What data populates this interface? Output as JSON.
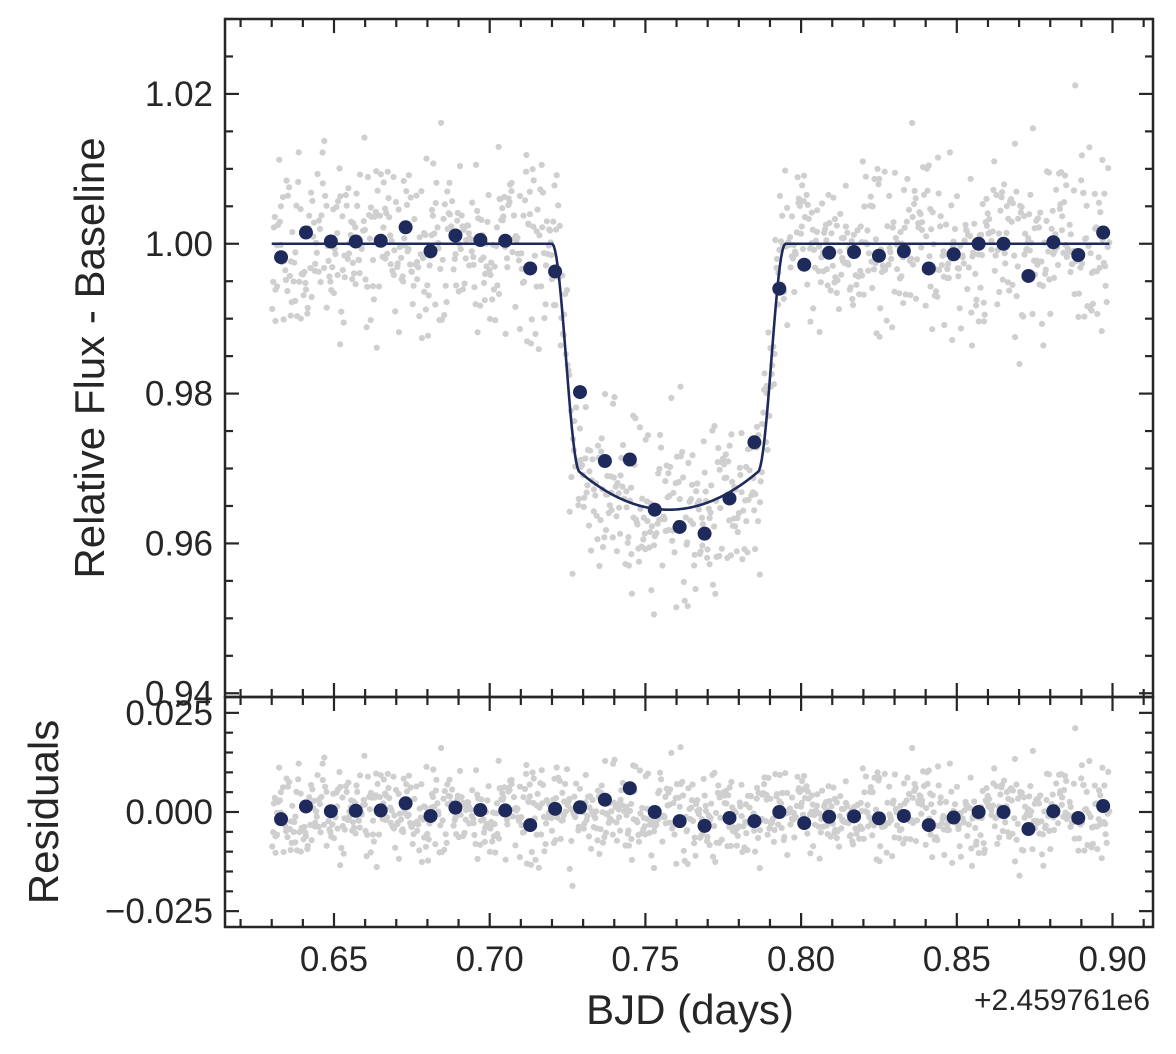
{
  "chart_data": {
    "type": "scatter",
    "x_offset_label": "+2.459761e6",
    "xlabel": "BJD (days)",
    "xlim": [
      0.615,
      0.913
    ],
    "xticks": [
      0.65,
      0.7,
      0.75,
      0.8,
      0.85,
      0.9
    ],
    "xtick_labels": [
      "0.65",
      "0.70",
      "0.75",
      "0.80",
      "0.85",
      "0.90"
    ],
    "colors": {
      "raw": "#cfcfcf",
      "binned": "#1f2a5c",
      "model": "#1f2a5c",
      "axes": "#262626"
    },
    "top_panel": {
      "ylabel": "Relative Flux - Baseline",
      "ylim": [
        0.9395,
        1.03
      ],
      "yticks": [
        0.94,
        0.96,
        0.98,
        1.0,
        1.02
      ],
      "ytick_labels": [
        "0.94",
        "0.96",
        "0.98",
        "1.00",
        "1.02"
      ],
      "model": {
        "baseline": 1.0,
        "depth_min": 0.9645,
        "t_mid": 0.7575,
        "t1": 0.72,
        "t2": 0.729,
        "t3": 0.786,
        "t4": 0.795,
        "x_start": 0.63,
        "x_end": 0.899
      },
      "binned": {
        "x": [
          0.633,
          0.641,
          0.649,
          0.657,
          0.665,
          0.673,
          0.681,
          0.689,
          0.697,
          0.705,
          0.713,
          0.721,
          0.729,
          0.737,
          0.745,
          0.753,
          0.761,
          0.769,
          0.777,
          0.785,
          0.793,
          0.801,
          0.809,
          0.817,
          0.825,
          0.833,
          0.841,
          0.849,
          0.857,
          0.865,
          0.873,
          0.881,
          0.889,
          0.897
        ],
        "y": [
          0.9982,
          1.0015,
          1.0003,
          1.0003,
          1.0004,
          1.0022,
          0.999,
          1.0011,
          1.0005,
          1.0004,
          0.9967,
          0.9963,
          0.9802,
          0.971,
          0.9712,
          0.9645,
          0.9622,
          0.9613,
          0.966,
          0.9735,
          0.994,
          0.9972,
          0.9988,
          0.9989,
          0.9984,
          0.999,
          0.9967,
          0.9986,
          1.0,
          1.0,
          0.9957,
          1.0002,
          0.9985,
          1.0015
        ]
      },
      "raw_scatter": {
        "n": 1100,
        "sigma": 0.0058,
        "seed": 7
      }
    },
    "bottom_panel": {
      "ylabel": "Residuals",
      "ylim": [
        -0.029,
        0.029
      ],
      "yticks": [
        -0.025,
        0.0,
        0.025
      ],
      "ytick_labels": [
        "−0.025",
        "0.000",
        "0.025"
      ],
      "binned_residuals": {
        "y": [
          -0.0018,
          0.0014,
          0.0002,
          0.0003,
          0.0004,
          0.0022,
          -0.001,
          0.0011,
          0.0005,
          0.0004,
          -0.0033,
          0.0008,
          0.0012,
          0.0031,
          0.006,
          0.0,
          -0.0023,
          -0.0035,
          -0.0015,
          -0.0023,
          0.0,
          -0.0028,
          -0.0012,
          -0.0011,
          -0.0016,
          -0.001,
          -0.0033,
          -0.0014,
          0.0,
          0.0,
          -0.0043,
          0.0002,
          -0.0015,
          0.0015
        ]
      }
    }
  }
}
